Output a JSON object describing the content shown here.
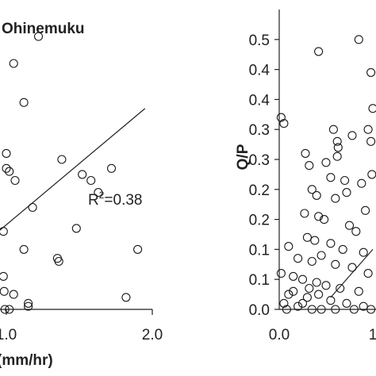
{
  "chart_data": [
    {
      "type": "scatter",
      "title": "Ohinemuku",
      "xlabel": "(mm/hr)",
      "ylabel": "",
      "x_ticks": [
        "1.0",
        "2.0"
      ],
      "xlim": [
        0.0,
        2.0
      ],
      "ylim": [
        0.0,
        0.5
      ],
      "annotation": {
        "prefix": "R",
        "sup": "2",
        "suffix": "=0.38"
      },
      "fit_line": {
        "x": [
          0.75,
          1.95
        ],
        "y": [
          0.09,
          0.335
        ]
      },
      "points": [
        {
          "x": 1.05,
          "y": 0.41
        },
        {
          "x": 1.22,
          "y": 0.455
        },
        {
          "x": 1.12,
          "y": 0.345
        },
        {
          "x": 1.0,
          "y": 0.26
        },
        {
          "x": 1.0,
          "y": 0.235
        },
        {
          "x": 1.02,
          "y": 0.23
        },
        {
          "x": 1.06,
          "y": 0.215
        },
        {
          "x": 1.38,
          "y": 0.25
        },
        {
          "x": 1.18,
          "y": 0.17
        },
        {
          "x": 1.52,
          "y": 0.225
        },
        {
          "x": 1.58,
          "y": 0.215
        },
        {
          "x": 1.63,
          "y": 0.195
        },
        {
          "x": 1.72,
          "y": 0.235
        },
        {
          "x": 0.98,
          "y": 0.13
        },
        {
          "x": 1.12,
          "y": 0.1
        },
        {
          "x": 1.48,
          "y": 0.135
        },
        {
          "x": 1.35,
          "y": 0.085
        },
        {
          "x": 1.36,
          "y": 0.08
        },
        {
          "x": 1.9,
          "y": 0.1
        },
        {
          "x": 0.98,
          "y": 0.055
        },
        {
          "x": 0.985,
          "y": 0.03
        },
        {
          "x": 1.05,
          "y": 0.025
        },
        {
          "x": 1.82,
          "y": 0.02
        },
        {
          "x": 1.15,
          "y": 0.01
        },
        {
          "x": 1.15,
          "y": 0.005
        },
        {
          "x": 0.99,
          "y": 0.0
        },
        {
          "x": 1.02,
          "y": 0.0
        }
      ]
    },
    {
      "type": "scatter",
      "title": "",
      "xlabel": "",
      "ylabel": "Q/P",
      "x_ticks": [
        "0.0",
        "1"
      ],
      "y_ticks": [
        "0.0",
        "0.1",
        "0.1",
        "0.2",
        "0.2",
        "0.3",
        "0.3",
        "0.4",
        "0.4",
        "0.5"
      ],
      "xlim": [
        0.0,
        1.0
      ],
      "ylim": [
        0.0,
        0.5
      ],
      "fit_line": {
        "x": [
          0.55,
          1.0
        ],
        "y": [
          0.02,
          0.1
        ]
      },
      "points": [
        {
          "x": 0.85,
          "y": 0.45
        },
        {
          "x": 0.98,
          "y": 0.395
        },
        {
          "x": 0.42,
          "y": 0.43
        },
        {
          "x": 0.02,
          "y": 0.32
        },
        {
          "x": 0.62,
          "y": 0.28
        },
        {
          "x": 0.63,
          "y": 0.27
        },
        {
          "x": 0.05,
          "y": 0.31
        },
        {
          "x": 0.58,
          "y": 0.3
        },
        {
          "x": 1.0,
          "y": 0.335
        },
        {
          "x": 0.62,
          "y": 0.255
        },
        {
          "x": 0.78,
          "y": 0.29
        },
        {
          "x": 0.95,
          "y": 0.3
        },
        {
          "x": 0.98,
          "y": 0.28
        },
        {
          "x": 0.28,
          "y": 0.26
        },
        {
          "x": 0.32,
          "y": 0.24
        },
        {
          "x": 0.5,
          "y": 0.245
        },
        {
          "x": 0.55,
          "y": 0.22
        },
        {
          "x": 0.7,
          "y": 0.215
        },
        {
          "x": 0.88,
          "y": 0.21
        },
        {
          "x": 0.99,
          "y": 0.225
        },
        {
          "x": 0.35,
          "y": 0.2
        },
        {
          "x": 0.4,
          "y": 0.19
        },
        {
          "x": 0.6,
          "y": 0.185
        },
        {
          "x": 0.72,
          "y": 0.195
        },
        {
          "x": 0.92,
          "y": 0.165
        },
        {
          "x": 0.27,
          "y": 0.16
        },
        {
          "x": 0.42,
          "y": 0.155
        },
        {
          "x": 0.48,
          "y": 0.15
        },
        {
          "x": 0.75,
          "y": 0.14
        },
        {
          "x": 0.82,
          "y": 0.13
        },
        {
          "x": 0.1,
          "y": 0.105
        },
        {
          "x": 0.3,
          "y": 0.12
        },
        {
          "x": 0.38,
          "y": 0.115
        },
        {
          "x": 0.55,
          "y": 0.11
        },
        {
          "x": 0.68,
          "y": 0.1
        },
        {
          "x": 0.9,
          "y": 0.095
        },
        {
          "x": 0.2,
          "y": 0.085
        },
        {
          "x": 0.35,
          "y": 0.08
        },
        {
          "x": 0.45,
          "y": 0.09
        },
        {
          "x": 0.6,
          "y": 0.075
        },
        {
          "x": 0.78,
          "y": 0.07
        },
        {
          "x": 0.95,
          "y": 0.06
        },
        {
          "x": 0.02,
          "y": 0.06
        },
        {
          "x": 0.15,
          "y": 0.055
        },
        {
          "x": 0.25,
          "y": 0.05
        },
        {
          "x": 0.4,
          "y": 0.045
        },
        {
          "x": 0.5,
          "y": 0.04
        },
        {
          "x": 0.65,
          "y": 0.035
        },
        {
          "x": 0.85,
          "y": 0.03
        },
        {
          "x": 0.1,
          "y": 0.025
        },
        {
          "x": 0.3,
          "y": 0.02
        },
        {
          "x": 0.55,
          "y": 0.015
        },
        {
          "x": 0.72,
          "y": 0.01
        },
        {
          "x": 0.9,
          "y": 0.005
        },
        {
          "x": 0.05,
          "y": 0.01
        },
        {
          "x": 0.2,
          "y": 0.005
        },
        {
          "x": 0.35,
          "y": 0.0
        },
        {
          "x": 0.45,
          "y": 0.0
        },
        {
          "x": 0.6,
          "y": 0.0
        },
        {
          "x": 0.8,
          "y": 0.0
        },
        {
          "x": 0.98,
          "y": 0.0
        },
        {
          "x": 0.08,
          "y": 0.0
        },
        {
          "x": 0.25,
          "y": 0.01
        },
        {
          "x": 0.15,
          "y": 0.03
        },
        {
          "x": 0.32,
          "y": 0.035
        },
        {
          "x": 0.42,
          "y": 0.025
        }
      ]
    }
  ]
}
